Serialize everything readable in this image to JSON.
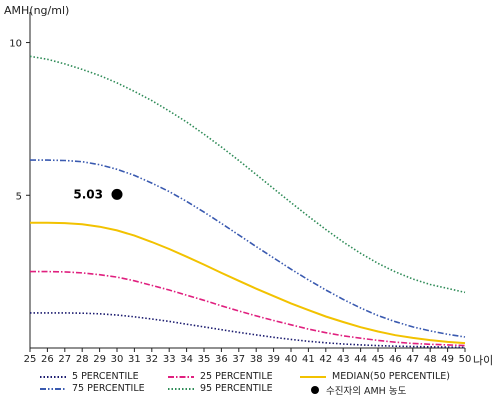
{
  "chart_data": {
    "type": "line",
    "y_axis_title": "AMH(ng/ml)",
    "x_axis_title": "나이",
    "x": [
      25,
      26,
      27,
      28,
      29,
      30,
      31,
      32,
      33,
      34,
      35,
      36,
      37,
      38,
      39,
      40,
      41,
      42,
      43,
      44,
      45,
      46,
      47,
      48,
      49,
      50
    ],
    "xlim": [
      25,
      50
    ],
    "ylim": [
      0,
      11
    ],
    "y_ticks": [
      5,
      10
    ],
    "grid": false,
    "legend_placement": "bottom",
    "series": [
      {
        "name": "5 PERCENTILE",
        "color": "#1a1a6e",
        "style": "dotted",
        "values": [
          1.15,
          1.15,
          1.15,
          1.14,
          1.12,
          1.08,
          1.02,
          0.95,
          0.87,
          0.78,
          0.69,
          0.6,
          0.51,
          0.43,
          0.35,
          0.28,
          0.22,
          0.17,
          0.13,
          0.1,
          0.08,
          0.06,
          0.05,
          0.04,
          0.03,
          0.02
        ]
      },
      {
        "name": "25 PERCENTILE",
        "color": "#e0207f",
        "style": "dashdot",
        "values": [
          2.5,
          2.5,
          2.49,
          2.46,
          2.4,
          2.32,
          2.2,
          2.05,
          1.9,
          1.73,
          1.56,
          1.38,
          1.21,
          1.05,
          0.9,
          0.76,
          0.62,
          0.5,
          0.4,
          0.32,
          0.25,
          0.19,
          0.15,
          0.12,
          0.1,
          0.08
        ]
      },
      {
        "name": "MEDIAN(50 PERCENTILE)",
        "color": "#f2c200",
        "style": "solid",
        "values": [
          4.1,
          4.1,
          4.09,
          4.05,
          3.97,
          3.85,
          3.68,
          3.47,
          3.24,
          2.99,
          2.73,
          2.46,
          2.2,
          1.94,
          1.7,
          1.46,
          1.24,
          1.03,
          0.85,
          0.68,
          0.54,
          0.42,
          0.33,
          0.26,
          0.2,
          0.16
        ]
      },
      {
        "name": "75 PERCENTILE",
        "color": "#3a5ab0",
        "style": "dashdotdot",
        "values": [
          6.15,
          6.15,
          6.14,
          6.1,
          6.0,
          5.85,
          5.65,
          5.4,
          5.12,
          4.8,
          4.45,
          4.08,
          3.7,
          3.32,
          2.95,
          2.58,
          2.23,
          1.9,
          1.59,
          1.31,
          1.06,
          0.86,
          0.69,
          0.56,
          0.45,
          0.36
        ]
      },
      {
        "name": "95 PERCENTILE",
        "color": "#2e8b57",
        "style": "dotted",
        "values": [
          9.55,
          9.45,
          9.3,
          9.12,
          8.92,
          8.68,
          8.4,
          8.1,
          7.76,
          7.4,
          7.0,
          6.58,
          6.14,
          5.68,
          5.22,
          4.76,
          4.31,
          3.88,
          3.47,
          3.1,
          2.77,
          2.49,
          2.26,
          2.08,
          1.95,
          1.82
        ]
      }
    ],
    "patient": {
      "label": "수진자의 AMH 농도",
      "x": 30,
      "y": 5.03,
      "value_label": "5.03",
      "color": "#000000"
    }
  }
}
